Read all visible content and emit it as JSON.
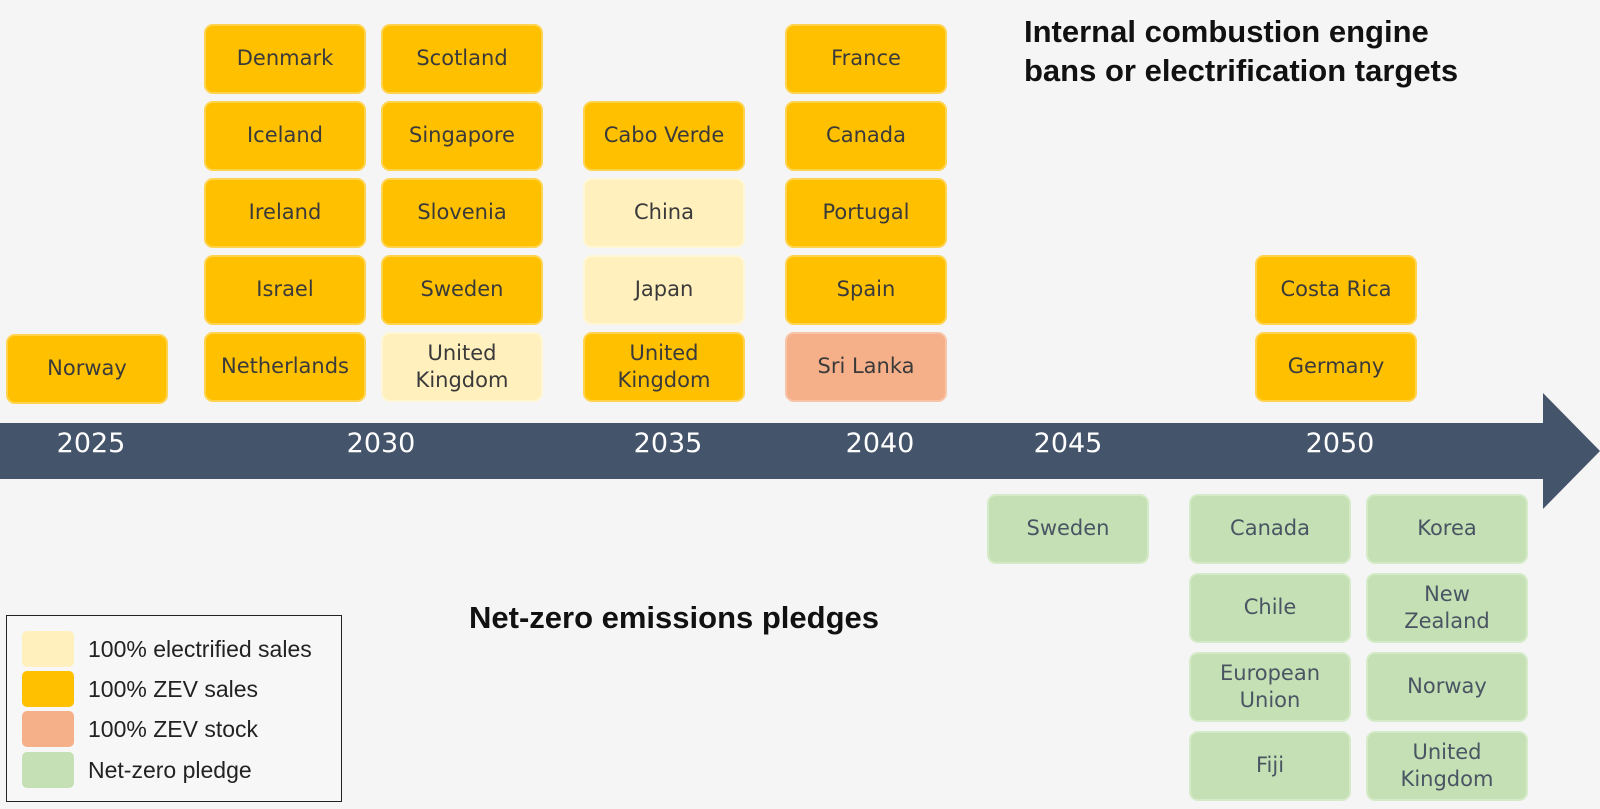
{
  "titles": {
    "top": "Internal combustion engine\nbans or electrification targets",
    "bottom": "Net-zero emissions pledges"
  },
  "colors": {
    "zev_sales": "#ffc000",
    "electrified": "#fff0bd",
    "zev_stock": "#f5b08a",
    "netzero": "#c5e0b4",
    "timeline": "#44546a"
  },
  "timeline": {
    "years": [
      "2025",
      "2030",
      "2035",
      "2040",
      "2045",
      "2050"
    ]
  },
  "ice_targets": [
    {
      "label": "Norway",
      "category": "zev_sales"
    },
    {
      "label": "Denmark",
      "category": "zev_sales"
    },
    {
      "label": "Iceland",
      "category": "zev_sales"
    },
    {
      "label": "Ireland",
      "category": "zev_sales"
    },
    {
      "label": "Israel",
      "category": "zev_sales"
    },
    {
      "label": "Netherlands",
      "category": "zev_sales"
    },
    {
      "label": "Scotland",
      "category": "zev_sales"
    },
    {
      "label": "Singapore",
      "category": "zev_sales"
    },
    {
      "label": "Slovenia",
      "category": "zev_sales"
    },
    {
      "label": "Sweden",
      "category": "zev_sales"
    },
    {
      "label": "United\nKingdom",
      "category": "electrified"
    },
    {
      "label": "Cabo Verde",
      "category": "zev_sales"
    },
    {
      "label": "China",
      "category": "electrified"
    },
    {
      "label": "Japan",
      "category": "electrified"
    },
    {
      "label": "United\nKingdom",
      "category": "zev_sales"
    },
    {
      "label": "France",
      "category": "zev_sales"
    },
    {
      "label": "Canada",
      "category": "zev_sales"
    },
    {
      "label": "Portugal",
      "category": "zev_sales"
    },
    {
      "label": "Spain",
      "category": "zev_sales"
    },
    {
      "label": "Sri Lanka",
      "category": "zev_stock"
    },
    {
      "label": "Costa Rica",
      "category": "zev_sales"
    },
    {
      "label": "Germany",
      "category": "zev_sales"
    }
  ],
  "netzero_pledges": [
    {
      "label": "Sweden",
      "category": "netzero"
    },
    {
      "label": "Canada",
      "category": "netzero"
    },
    {
      "label": "Chile",
      "category": "netzero"
    },
    {
      "label": "European\nUnion",
      "category": "netzero"
    },
    {
      "label": "Fiji",
      "category": "netzero"
    },
    {
      "label": "Korea",
      "category": "netzero"
    },
    {
      "label": "New\nZealand",
      "category": "netzero"
    },
    {
      "label": "Norway",
      "category": "netzero"
    },
    {
      "label": "United\nKingdom",
      "category": "netzero"
    }
  ],
  "legend": [
    {
      "label": "100% electrified sales",
      "category": "electrified"
    },
    {
      "label": "100% ZEV sales",
      "category": "zev_sales"
    },
    {
      "label": "100% ZEV stock",
      "category": "zev_stock"
    },
    {
      "label": "Net-zero pledge",
      "category": "netzero"
    }
  ]
}
